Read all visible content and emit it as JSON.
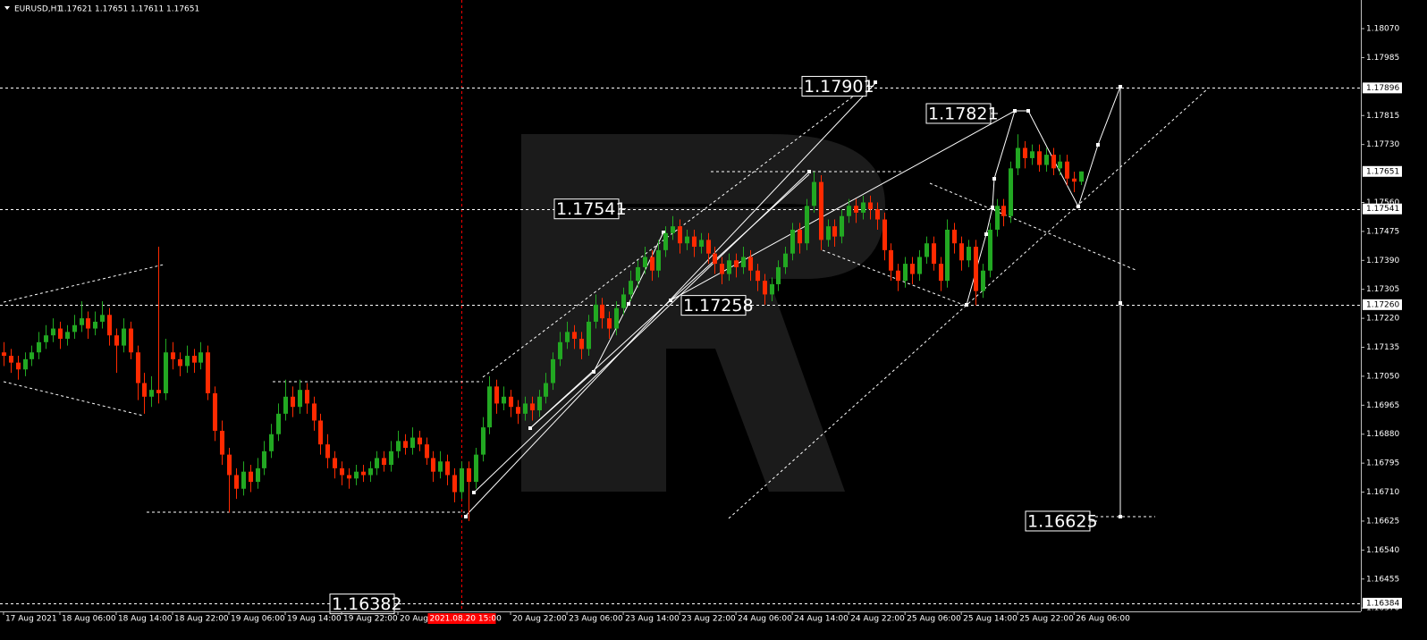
{
  "chart_data": {
    "type": "candlestick",
    "symbol": "EURUSD,H1",
    "candles": [
      [
        1.1712,
        1.1715,
        1.1708,
        1.1711
      ],
      [
        1.1711,
        1.1713,
        1.1706,
        1.1709
      ],
      [
        1.1709,
        1.1711,
        1.1704,
        1.1707
      ],
      [
        1.1707,
        1.1712,
        1.1705,
        1.171
      ],
      [
        1.171,
        1.1714,
        1.1708,
        1.1712
      ],
      [
        1.1712,
        1.1718,
        1.171,
        1.1715
      ],
      [
        1.1715,
        1.172,
        1.1713,
        1.1717
      ],
      [
        1.1717,
        1.1722,
        1.1715,
        1.1719
      ],
      [
        1.1719,
        1.1721,
        1.1713,
        1.1716
      ],
      [
        1.1716,
        1.172,
        1.1714,
        1.1718
      ],
      [
        1.1718,
        1.1723,
        1.1716,
        1.172
      ],
      [
        1.172,
        1.1727,
        1.1718,
        1.1722
      ],
      [
        1.1722,
        1.1724,
        1.1716,
        1.1719
      ],
      [
        1.1719,
        1.1724,
        1.1717,
        1.1721
      ],
      [
        1.1721,
        1.1727,
        1.1719,
        1.1723
      ],
      [
        1.1723,
        1.1725,
        1.1714,
        1.1717
      ],
      [
        1.1717,
        1.1719,
        1.1706,
        1.1714
      ],
      [
        1.1714,
        1.1722,
        1.1712,
        1.1719
      ],
      [
        1.1719,
        1.1721,
        1.171,
        1.1712
      ],
      [
        1.1712,
        1.1714,
        1.1698,
        1.1703
      ],
      [
        1.1703,
        1.1706,
        1.1694,
        1.1699
      ],
      [
        1.1699,
        1.1705,
        1.1696,
        1.1701
      ],
      [
        1.1701,
        1.1743,
        1.1697,
        1.17
      ],
      [
        1.17,
        1.1716,
        1.1698,
        1.1712
      ],
      [
        1.1712,
        1.1715,
        1.1707,
        1.171
      ],
      [
        1.171,
        1.1712,
        1.1705,
        1.1708
      ],
      [
        1.1708,
        1.1714,
        1.1706,
        1.1711
      ],
      [
        1.1711,
        1.1713,
        1.1706,
        1.1709
      ],
      [
        1.1709,
        1.1715,
        1.1707,
        1.1712
      ],
      [
        1.1712,
        1.1714,
        1.1698,
        1.17
      ],
      [
        1.17,
        1.1702,
        1.1686,
        1.1689
      ],
      [
        1.1689,
        1.1692,
        1.1679,
        1.1682
      ],
      [
        1.1682,
        1.1684,
        1.1665,
        1.1676
      ],
      [
        1.1676,
        1.1678,
        1.1669,
        1.1672
      ],
      [
        1.1672,
        1.168,
        1.167,
        1.1677
      ],
      [
        1.1677,
        1.1679,
        1.1671,
        1.1674
      ],
      [
        1.1674,
        1.1681,
        1.1672,
        1.1678
      ],
      [
        1.1678,
        1.1686,
        1.1676,
        1.1683
      ],
      [
        1.1683,
        1.1691,
        1.1681,
        1.1688
      ],
      [
        1.1688,
        1.1697,
        1.1686,
        1.1694
      ],
      [
        1.1694,
        1.1704,
        1.1692,
        1.1699
      ],
      [
        1.1699,
        1.1702,
        1.1693,
        1.1696
      ],
      [
        1.1696,
        1.1704,
        1.1694,
        1.1701
      ],
      [
        1.1701,
        1.1703,
        1.1694,
        1.1697
      ],
      [
        1.1697,
        1.1699,
        1.1689,
        1.1692
      ],
      [
        1.1692,
        1.1694,
        1.1682,
        1.1685
      ],
      [
        1.1685,
        1.1688,
        1.1678,
        1.1681
      ],
      [
        1.1681,
        1.1683,
        1.1675,
        1.1678
      ],
      [
        1.1678,
        1.168,
        1.1673,
        1.1676
      ],
      [
        1.1676,
        1.1678,
        1.1672,
        1.1675
      ],
      [
        1.1675,
        1.1679,
        1.1673,
        1.1677
      ],
      [
        1.1677,
        1.1679,
        1.1674,
        1.1676
      ],
      [
        1.1676,
        1.168,
        1.1674,
        1.1678
      ],
      [
        1.1678,
        1.1683,
        1.1676,
        1.1681
      ],
      [
        1.1681,
        1.1683,
        1.1677,
        1.1679
      ],
      [
        1.1679,
        1.1686,
        1.1677,
        1.1683
      ],
      [
        1.1683,
        1.1689,
        1.1681,
        1.1686
      ],
      [
        1.1686,
        1.1688,
        1.1682,
        1.1684
      ],
      [
        1.1684,
        1.169,
        1.1682,
        1.1687
      ],
      [
        1.1687,
        1.1689,
        1.1683,
        1.1685
      ],
      [
        1.1685,
        1.1687,
        1.1679,
        1.1681
      ],
      [
        1.1681,
        1.1683,
        1.1674,
        1.1677
      ],
      [
        1.1677,
        1.1683,
        1.1675,
        1.168
      ],
      [
        1.168,
        1.1682,
        1.1673,
        1.1676
      ],
      [
        1.1676,
        1.1678,
        1.1668,
        1.1671
      ],
      [
        1.1671,
        1.168,
        1.1669,
        1.1678
      ],
      [
        1.1678,
        1.168,
        1.16625,
        1.1674
      ],
      [
        1.1674,
        1.1684,
        1.1672,
        1.1682
      ],
      [
        1.1682,
        1.1693,
        1.168,
        1.169
      ],
      [
        1.169,
        1.1705,
        1.1688,
        1.1702
      ],
      [
        1.1702,
        1.1704,
        1.1694,
        1.1697
      ],
      [
        1.1697,
        1.1702,
        1.1695,
        1.1699
      ],
      [
        1.1699,
        1.1701,
        1.1693,
        1.1696
      ],
      [
        1.1696,
        1.1698,
        1.1691,
        1.1694
      ],
      [
        1.1694,
        1.1699,
        1.1692,
        1.1697
      ],
      [
        1.1697,
        1.1699,
        1.1692,
        1.1695
      ],
      [
        1.1695,
        1.1701,
        1.1693,
        1.1699
      ],
      [
        1.1699,
        1.1706,
        1.1697,
        1.1703
      ],
      [
        1.1703,
        1.1712,
        1.1701,
        1.171
      ],
      [
        1.171,
        1.1718,
        1.1708,
        1.1715
      ],
      [
        1.1715,
        1.1721,
        1.1713,
        1.1718
      ],
      [
        1.1718,
        1.172,
        1.1713,
        1.1716
      ],
      [
        1.1716,
        1.1718,
        1.171,
        1.1713
      ],
      [
        1.1713,
        1.1723,
        1.1711,
        1.1721
      ],
      [
        1.1721,
        1.1729,
        1.1719,
        1.1726
      ],
      [
        1.1726,
        1.1728,
        1.1719,
        1.1722
      ],
      [
        1.1722,
        1.1724,
        1.1716,
        1.1719
      ],
      [
        1.1719,
        1.1727,
        1.1717,
        1.1725
      ],
      [
        1.1725,
        1.1731,
        1.1723,
        1.1729
      ],
      [
        1.1729,
        1.1736,
        1.1727,
        1.1733
      ],
      [
        1.1733,
        1.1739,
        1.1731,
        1.1737
      ],
      [
        1.1737,
        1.1743,
        1.1735,
        1.174
      ],
      [
        1.174,
        1.1742,
        1.1733,
        1.1736
      ],
      [
        1.1736,
        1.1745,
        1.1734,
        1.1742
      ],
      [
        1.1742,
        1.1749,
        1.174,
        1.1747
      ],
      [
        1.1747,
        1.1752,
        1.1745,
        1.1749
      ],
      [
        1.1749,
        1.1751,
        1.1741,
        1.1744
      ],
      [
        1.1744,
        1.1748,
        1.1742,
        1.1746
      ],
      [
        1.1746,
        1.1748,
        1.174,
        1.1743
      ],
      [
        1.1743,
        1.1747,
        1.1741,
        1.1745
      ],
      [
        1.1745,
        1.1747,
        1.1738,
        1.1741
      ],
      [
        1.1741,
        1.1743,
        1.1735,
        1.1738
      ],
      [
        1.1738,
        1.174,
        1.1732,
        1.1735
      ],
      [
        1.1735,
        1.1741,
        1.1733,
        1.1739
      ],
      [
        1.1739,
        1.1741,
        1.1734,
        1.1737
      ],
      [
        1.1737,
        1.1743,
        1.1735,
        1.174
      ],
      [
        1.174,
        1.1742,
        1.1733,
        1.1736
      ],
      [
        1.1736,
        1.1738,
        1.173,
        1.1733
      ],
      [
        1.1733,
        1.1735,
        1.1726,
        1.1729
      ],
      [
        1.1729,
        1.1734,
        1.1727,
        1.1732
      ],
      [
        1.1732,
        1.1739,
        1.173,
        1.1737
      ],
      [
        1.1737,
        1.1743,
        1.1735,
        1.1741
      ],
      [
        1.1741,
        1.175,
        1.1739,
        1.1748
      ],
      [
        1.1748,
        1.175,
        1.1741,
        1.1744
      ],
      [
        1.1744,
        1.1757,
        1.1742,
        1.1755
      ],
      [
        1.1755,
        1.1765,
        1.1753,
        1.1762
      ],
      [
        1.1762,
        1.1764,
        1.1742,
        1.1745
      ],
      [
        1.1745,
        1.1751,
        1.1743,
        1.1749
      ],
      [
        1.1749,
        1.1751,
        1.1743,
        1.1746
      ],
      [
        1.1746,
        1.1754,
        1.1744,
        1.1752
      ],
      [
        1.1752,
        1.1757,
        1.175,
        1.1755
      ],
      [
        1.1755,
        1.1757,
        1.175,
        1.1753
      ],
      [
        1.1753,
        1.1758,
        1.1751,
        1.1756
      ],
      [
        1.1756,
        1.1758,
        1.1751,
        1.1754
      ],
      [
        1.1754,
        1.1756,
        1.1748,
        1.1751
      ],
      [
        1.1751,
        1.1753,
        1.1739,
        1.1742
      ],
      [
        1.1742,
        1.1744,
        1.1733,
        1.1736
      ],
      [
        1.1736,
        1.1738,
        1.173,
        1.1733
      ],
      [
        1.1733,
        1.174,
        1.1731,
        1.1738
      ],
      [
        1.1738,
        1.174,
        1.1732,
        1.1735
      ],
      [
        1.1735,
        1.1742,
        1.1733,
        1.174
      ],
      [
        1.174,
        1.1746,
        1.1738,
        1.1744
      ],
      [
        1.1744,
        1.1746,
        1.1736,
        1.1738
      ],
      [
        1.1738,
        1.174,
        1.173,
        1.1733
      ],
      [
        1.1733,
        1.1751,
        1.1731,
        1.1748
      ],
      [
        1.1748,
        1.175,
        1.1741,
        1.1744
      ],
      [
        1.1744,
        1.1746,
        1.1736,
        1.1739
      ],
      [
        1.1739,
        1.1745,
        1.1737,
        1.1743
      ],
      [
        1.1743,
        1.1745,
        1.17258,
        1.173
      ],
      [
        1.173,
        1.1738,
        1.1728,
        1.1736
      ],
      [
        1.1736,
        1.175,
        1.1734,
        1.1748
      ],
      [
        1.1748,
        1.1757,
        1.1746,
        1.1755
      ],
      [
        1.1755,
        1.1757,
        1.1749,
        1.1752
      ],
      [
        1.1752,
        1.1768,
        1.175,
        1.1766
      ],
      [
        1.1766,
        1.1776,
        1.1764,
        1.1772
      ],
      [
        1.1772,
        1.1774,
        1.1766,
        1.1769
      ],
      [
        1.1769,
        1.1773,
        1.1767,
        1.1771
      ],
      [
        1.1771,
        1.1773,
        1.1765,
        1.1767
      ],
      [
        1.1767,
        1.1772,
        1.1765,
        1.177
      ],
      [
        1.177,
        1.1772,
        1.1764,
        1.1766
      ],
      [
        1.1766,
        1.177,
        1.1764,
        1.1768
      ],
      [
        1.1768,
        1.177,
        1.1761,
        1.1763
      ],
      [
        1.1763,
        1.1765,
        1.1759,
        1.17621
      ],
      [
        1.17621,
        1.17651,
        1.17611,
        1.17651
      ]
    ],
    "up_color": "#22a822",
    "down_color": "#ff2a00",
    "xlim": [
      -0.5,
      192.6
    ],
    "xticks": [
      {
        "value": 0,
        "label": "17 Aug 2021"
      },
      {
        "value": 8,
        "label": "18 Aug 06:00"
      },
      {
        "value": 16,
        "label": "18 Aug 14:00"
      },
      {
        "value": 24,
        "label": "18 Aug 22:00"
      },
      {
        "value": 32,
        "label": "19 Aug 06:00"
      },
      {
        "value": 40,
        "label": "19 Aug 14:00"
      },
      {
        "value": 48,
        "label": "19 Aug 22:00"
      },
      {
        "value": 56,
        "label": "20 Aug"
      },
      {
        "value": 72,
        "label": "20 Aug 22:00"
      },
      {
        "value": 80,
        "label": "23 Aug 06:00"
      },
      {
        "value": 88,
        "label": "23 Aug 14:00"
      },
      {
        "value": 96,
        "label": "23 Aug 22:00"
      },
      {
        "value": 104,
        "label": "24 Aug 06:00"
      },
      {
        "value": 112,
        "label": "24 Aug 14:00"
      },
      {
        "value": 120,
        "label": "24 Aug 22:00"
      },
      {
        "value": 128,
        "label": "25 Aug 06:00"
      },
      {
        "value": 136,
        "label": "25 Aug 14:00"
      },
      {
        "value": 144,
        "label": "25 Aug 22:00"
      },
      {
        "value": 152,
        "label": "26 Aug 06:00"
      }
    ],
    "crosshair": {
      "value": 65,
      "label": "2021.08.20 15:00"
    },
    "ylim": [
      1.1636,
      1.18154
    ],
    "yticks": [
      {
        "value": 1.1807,
        "label": "1.18070"
      },
      {
        "value": 1.17985,
        "label": "1.17985"
      },
      {
        "value": 1.17815,
        "label": "1.17815"
      },
      {
        "value": 1.1773,
        "label": "1.17730"
      },
      {
        "value": 1.1756,
        "label": "1.17560"
      },
      {
        "value": 1.17475,
        "label": "1.17475"
      },
      {
        "value": 1.1739,
        "label": "1.17390"
      },
      {
        "value": 1.17305,
        "label": "1.17305"
      },
      {
        "value": 1.1722,
        "label": "1.17220"
      },
      {
        "value": 1.17135,
        "label": "1.17135"
      },
      {
        "value": 1.1705,
        "label": "1.17050"
      },
      {
        "value": 1.16965,
        "label": "1.16965"
      },
      {
        "value": 1.1688,
        "label": "1.16880"
      },
      {
        "value": 1.16795,
        "label": "1.16795"
      },
      {
        "value": 1.1671,
        "label": "1.16710"
      },
      {
        "value": 1.16625,
        "label": "1.16625"
      },
      {
        "value": 1.1654,
        "label": "1.16540"
      },
      {
        "value": 1.16455,
        "label": "1.16455"
      },
      {
        "value": 1.1637,
        "label": "1.16370"
      }
    ],
    "levels": [
      1.17896,
      1.17541,
      {
        "value": 1.1726,
        "label": "1.17260"
      },
      1.16384
    ],
    "current_price": 1.17651,
    "annotations": [
      1.17901,
      1.17821,
      1.17541,
      1.17258,
      1.16625,
      1.16382
    ]
  }
}
